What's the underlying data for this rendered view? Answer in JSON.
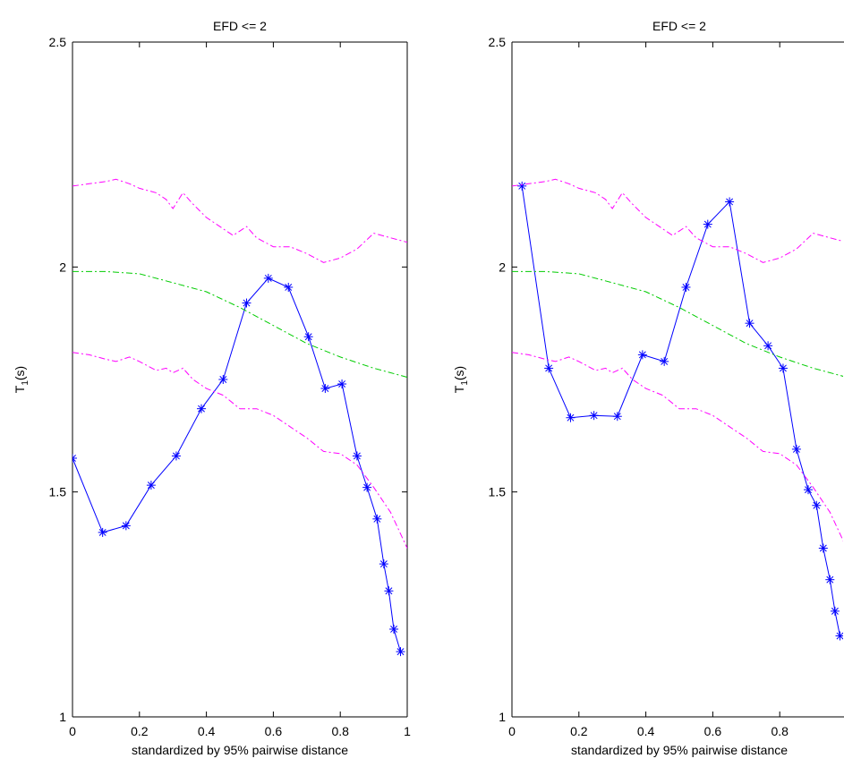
{
  "chart_data": [
    {
      "type": "line",
      "title": "EFD <= 2",
      "xlabel": "standardized by 95% pairwise distance",
      "ylabel": {
        "main": "T",
        "sub": "1",
        "suffix": "(s)"
      },
      "xlim": [
        0,
        1
      ],
      "ylim": [
        1,
        2.5
      ],
      "xticks": [
        0,
        0.2,
        0.4,
        0.6,
        0.8,
        1
      ],
      "xtick_labels": [
        "0",
        "0.2",
        "0.4",
        "0.6",
        "0.8",
        "1"
      ],
      "yticks": [
        1,
        1.5,
        2,
        2.5
      ],
      "ytick_labels": [
        "1",
        "1.5",
        "2",
        "2.5"
      ],
      "grid": false,
      "series": [
        {
          "role": "observed",
          "style": "solid-star",
          "color": "#0000ff",
          "x": [
            0.0,
            0.09,
            0.16,
            0.235,
            0.31,
            0.385,
            0.45,
            0.52,
            0.585,
            0.645,
            0.705,
            0.755,
            0.805,
            0.85,
            0.88,
            0.91,
            0.93,
            0.945,
            0.96,
            0.98
          ],
          "y": [
            1.575,
            1.41,
            1.425,
            1.515,
            1.58,
            1.685,
            1.75,
            1.92,
            1.975,
            1.955,
            1.845,
            1.73,
            1.74,
            1.58,
            1.51,
            1.44,
            1.34,
            1.28,
            1.195,
            1.145
          ]
        },
        {
          "role": "mean",
          "style": "dashdot",
          "color": "#00cc00",
          "x": [
            0,
            0.1,
            0.2,
            0.3,
            0.4,
            0.5,
            0.6,
            0.7,
            0.8,
            0.9,
            1.0
          ],
          "y": [
            1.99,
            1.99,
            1.985,
            1.965,
            1.945,
            1.91,
            1.87,
            1.83,
            1.8,
            1.775,
            1.755
          ]
        },
        {
          "role": "upper-envelope",
          "style": "dashdot",
          "color": "#ff00ff",
          "x": [
            0,
            0.05,
            0.1,
            0.13,
            0.17,
            0.2,
            0.25,
            0.28,
            0.3,
            0.33,
            0.36,
            0.4,
            0.45,
            0.48,
            0.52,
            0.55,
            0.6,
            0.65,
            0.7,
            0.75,
            0.8,
            0.85,
            0.9,
            0.95,
            1.0
          ],
          "y": [
            2.18,
            2.185,
            2.19,
            2.195,
            2.185,
            2.175,
            2.165,
            2.15,
            2.13,
            2.165,
            2.14,
            2.11,
            2.085,
            2.07,
            2.09,
            2.065,
            2.045,
            2.045,
            2.03,
            2.01,
            2.02,
            2.04,
            2.075,
            2.065,
            2.055
          ]
        },
        {
          "role": "lower-envelope",
          "style": "dashdot",
          "color": "#ff00ff",
          "x": [
            0,
            0.05,
            0.1,
            0.13,
            0.17,
            0.2,
            0.25,
            0.28,
            0.3,
            0.33,
            0.36,
            0.4,
            0.45,
            0.5,
            0.55,
            0.6,
            0.65,
            0.7,
            0.75,
            0.8,
            0.85,
            0.9,
            0.95,
            1.0
          ],
          "y": [
            1.81,
            1.805,
            1.795,
            1.79,
            1.8,
            1.79,
            1.77,
            1.775,
            1.765,
            1.775,
            1.75,
            1.73,
            1.715,
            1.685,
            1.685,
            1.67,
            1.645,
            1.62,
            1.59,
            1.585,
            1.56,
            1.51,
            1.455,
            1.375
          ]
        }
      ]
    },
    {
      "type": "line",
      "title": "EFD <= 2",
      "xlabel": "standardized by 95% pairwise distance",
      "ylabel": {
        "main": "T",
        "sub": "1",
        "suffix": "(s)"
      },
      "xlim": [
        0,
        1
      ],
      "ylim": [
        1,
        2.5
      ],
      "xticks": [
        0,
        0.2,
        0.4,
        0.6,
        0.8,
        1
      ],
      "xtick_labels": [
        "0",
        "0.2",
        "0.4",
        "0.6",
        "0.8",
        "1"
      ],
      "yticks": [
        1,
        1.5,
        2,
        2.5
      ],
      "ytick_labels": [
        "1",
        "1.5",
        "2",
        "2.5"
      ],
      "grid": false,
      "series": [
        {
          "role": "observed",
          "style": "solid-star",
          "color": "#0000ff",
          "x": [
            0.03,
            0.11,
            0.175,
            0.245,
            0.315,
            0.39,
            0.455,
            0.52,
            0.585,
            0.65,
            0.71,
            0.765,
            0.81,
            0.85,
            0.885,
            0.91,
            0.93,
            0.95,
            0.965,
            0.98
          ],
          "y": [
            2.18,
            1.775,
            1.665,
            1.67,
            1.668,
            1.805,
            1.79,
            1.955,
            2.095,
            2.145,
            1.875,
            1.825,
            1.775,
            1.595,
            1.505,
            1.47,
            1.375,
            1.305,
            1.235,
            1.18
          ]
        },
        {
          "role": "mean",
          "style": "dashdot",
          "color": "#00cc00",
          "x": [
            0,
            0.1,
            0.2,
            0.3,
            0.4,
            0.5,
            0.6,
            0.7,
            0.8,
            0.9,
            1.0
          ],
          "y": [
            1.99,
            1.99,
            1.985,
            1.965,
            1.945,
            1.91,
            1.87,
            1.83,
            1.8,
            1.775,
            1.755
          ]
        },
        {
          "role": "upper-envelope",
          "style": "dashdot",
          "color": "#ff00ff",
          "x": [
            0,
            0.05,
            0.1,
            0.13,
            0.17,
            0.2,
            0.25,
            0.28,
            0.3,
            0.33,
            0.36,
            0.4,
            0.45,
            0.48,
            0.52,
            0.55,
            0.6,
            0.65,
            0.7,
            0.75,
            0.8,
            0.85,
            0.9,
            0.95,
            1.0
          ],
          "y": [
            2.18,
            2.185,
            2.19,
            2.195,
            2.185,
            2.175,
            2.165,
            2.15,
            2.13,
            2.165,
            2.14,
            2.11,
            2.085,
            2.07,
            2.09,
            2.065,
            2.045,
            2.045,
            2.03,
            2.01,
            2.02,
            2.04,
            2.075,
            2.065,
            2.055
          ]
        },
        {
          "role": "lower-envelope",
          "style": "dashdot",
          "color": "#ff00ff",
          "x": [
            0,
            0.05,
            0.1,
            0.13,
            0.17,
            0.2,
            0.25,
            0.28,
            0.3,
            0.33,
            0.36,
            0.4,
            0.45,
            0.5,
            0.55,
            0.6,
            0.65,
            0.7,
            0.75,
            0.8,
            0.85,
            0.9,
            0.95,
            1.0
          ],
          "y": [
            1.81,
            1.805,
            1.795,
            1.79,
            1.8,
            1.79,
            1.77,
            1.775,
            1.765,
            1.775,
            1.75,
            1.73,
            1.715,
            1.685,
            1.685,
            1.67,
            1.645,
            1.62,
            1.59,
            1.585,
            1.56,
            1.51,
            1.455,
            1.375
          ]
        }
      ]
    }
  ]
}
